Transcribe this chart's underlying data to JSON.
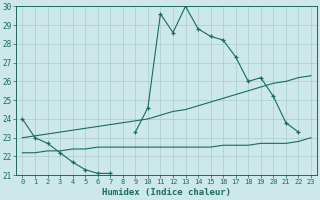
{
  "xlabel": "Humidex (Indice chaleur)",
  "x_values": [
    0,
    1,
    2,
    3,
    4,
    5,
    6,
    7,
    8,
    9,
    10,
    11,
    12,
    13,
    14,
    15,
    16,
    17,
    18,
    19,
    20,
    21,
    22,
    23
  ],
  "line_main_y": [
    24.0,
    23.0,
    22.7,
    22.2,
    21.7,
    21.3,
    21.1,
    21.1,
    null,
    23.3,
    24.6,
    29.6,
    28.6,
    30.0,
    28.8,
    28.4,
    28.2,
    27.3,
    26.0,
    26.2,
    25.2,
    23.8,
    23.3,
    null
  ],
  "line_diag_y": [
    23.0,
    23.1,
    23.2,
    23.3,
    23.4,
    23.5,
    23.6,
    23.7,
    23.8,
    23.9,
    24.0,
    24.2,
    24.4,
    24.5,
    24.7,
    24.9,
    25.1,
    25.3,
    25.5,
    25.7,
    25.9,
    26.0,
    26.2,
    26.3
  ],
  "line_flat_y": [
    22.2,
    22.2,
    22.3,
    22.3,
    22.4,
    22.4,
    22.5,
    22.5,
    22.5,
    22.5,
    22.5,
    22.5,
    22.5,
    22.5,
    22.5,
    22.5,
    22.6,
    22.6,
    22.6,
    22.7,
    22.7,
    22.7,
    22.8,
    23.0
  ],
  "line_color": "#1a6b5a",
  "bg_color": "#cce8e8",
  "grid_color": "#aacccc",
  "ylim": [
    21,
    30
  ],
  "xlim": [
    -0.5,
    23.5
  ],
  "yticks": [
    21,
    22,
    23,
    24,
    25,
    26,
    27,
    28,
    29,
    30
  ],
  "xticks": [
    0,
    1,
    2,
    3,
    4,
    5,
    6,
    7,
    8,
    9,
    10,
    11,
    12,
    13,
    14,
    15,
    16,
    17,
    18,
    19,
    20,
    21,
    22,
    23
  ]
}
